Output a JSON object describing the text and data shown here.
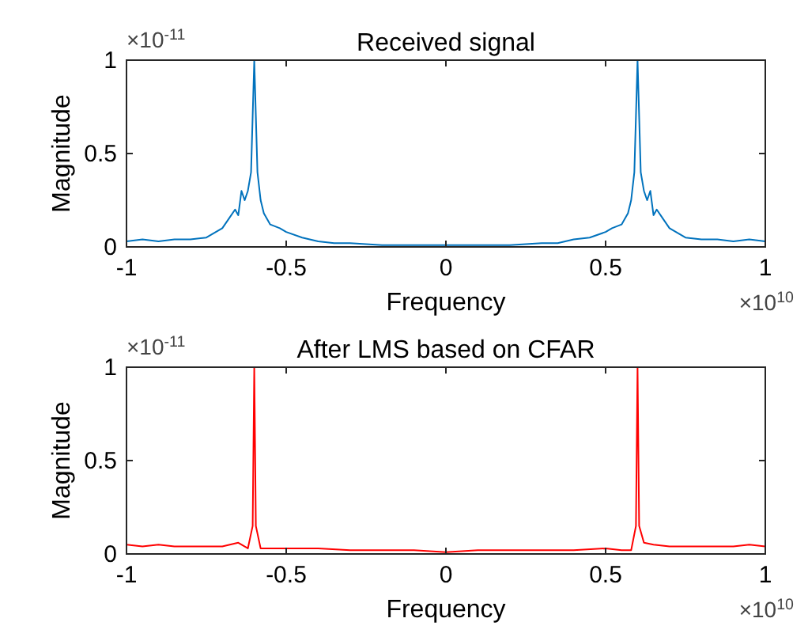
{
  "chart_data": [
    {
      "type": "line",
      "title": "Received signal",
      "xlabel": "Frequency",
      "ylabel": "Magnitude",
      "annotations": [
        "×10$^{-11}$",
        "×10$^{10}$"
      ],
      "xlim": [
        -1,
        1
      ],
      "ylim": [
        0,
        1
      ],
      "xticks": [
        -1,
        -0.5,
        0,
        0.5,
        1
      ],
      "yticks": [
        0,
        0.5,
        1
      ],
      "series": [
        {
          "color": "#0072bd",
          "x": [
            -1,
            -0.95,
            -0.9,
            -0.85,
            -0.8,
            -0.75,
            -0.7,
            -0.68,
            -0.66,
            -0.65,
            -0.64,
            -0.63,
            -0.62,
            -0.61,
            -0.605,
            -0.6,
            -0.595,
            -0.59,
            -0.58,
            -0.57,
            -0.55,
            -0.52,
            -0.5,
            -0.45,
            -0.4,
            -0.35,
            -0.3,
            -0.2,
            -0.1,
            0,
            0.1,
            0.2,
            0.3,
            0.35,
            0.4,
            0.45,
            0.5,
            0.52,
            0.55,
            0.57,
            0.58,
            0.59,
            0.595,
            0.6,
            0.605,
            0.61,
            0.62,
            0.63,
            0.64,
            0.65,
            0.66,
            0.68,
            0.7,
            0.75,
            0.8,
            0.85,
            0.9,
            0.95,
            1
          ],
          "values": [
            0.03,
            0.04,
            0.03,
            0.04,
            0.04,
            0.05,
            0.1,
            0.15,
            0.2,
            0.17,
            0.3,
            0.25,
            0.3,
            0.4,
            0.7,
            1,
            0.7,
            0.4,
            0.25,
            0.18,
            0.12,
            0.1,
            0.08,
            0.05,
            0.03,
            0.02,
            0.02,
            0.01,
            0.01,
            0.01,
            0.01,
            0.01,
            0.02,
            0.02,
            0.04,
            0.05,
            0.08,
            0.1,
            0.12,
            0.18,
            0.25,
            0.4,
            0.7,
            1,
            0.7,
            0.4,
            0.3,
            0.25,
            0.3,
            0.17,
            0.2,
            0.15,
            0.1,
            0.05,
            0.04,
            0.04,
            0.03,
            0.04,
            0.03
          ]
        }
      ]
    },
    {
      "type": "line",
      "title": "After LMS based on CFAR",
      "xlabel": "Frequency",
      "ylabel": "Magnitude",
      "annotations": [
        "×10$^{-11}$",
        "×10$^{10}$"
      ],
      "xlim": [
        -1,
        1
      ],
      "ylim": [
        0,
        1
      ],
      "xticks": [
        -1,
        -0.5,
        0,
        0.5,
        1
      ],
      "yticks": [
        0,
        0.5,
        1
      ],
      "series": [
        {
          "color": "#ff0000",
          "x": [
            -1,
            -0.95,
            -0.9,
            -0.85,
            -0.8,
            -0.75,
            -0.7,
            -0.65,
            -0.62,
            -0.605,
            -0.6,
            -0.595,
            -0.58,
            -0.55,
            -0.5,
            -0.4,
            -0.3,
            -0.2,
            -0.1,
            0,
            0.1,
            0.2,
            0.3,
            0.4,
            0.5,
            0.55,
            0.58,
            0.595,
            0.6,
            0.605,
            0.62,
            0.65,
            0.7,
            0.75,
            0.8,
            0.85,
            0.9,
            0.95,
            1
          ],
          "values": [
            0.05,
            0.04,
            0.05,
            0.04,
            0.04,
            0.04,
            0.04,
            0.06,
            0.03,
            0.15,
            1,
            0.15,
            0.03,
            0.03,
            0.03,
            0.03,
            0.02,
            0.02,
            0.02,
            0.01,
            0.02,
            0.02,
            0.02,
            0.02,
            0.03,
            0.02,
            0.02,
            0.15,
            1,
            0.15,
            0.06,
            0.05,
            0.04,
            0.04,
            0.04,
            0.04,
            0.04,
            0.05,
            0.04
          ]
        }
      ]
    }
  ]
}
